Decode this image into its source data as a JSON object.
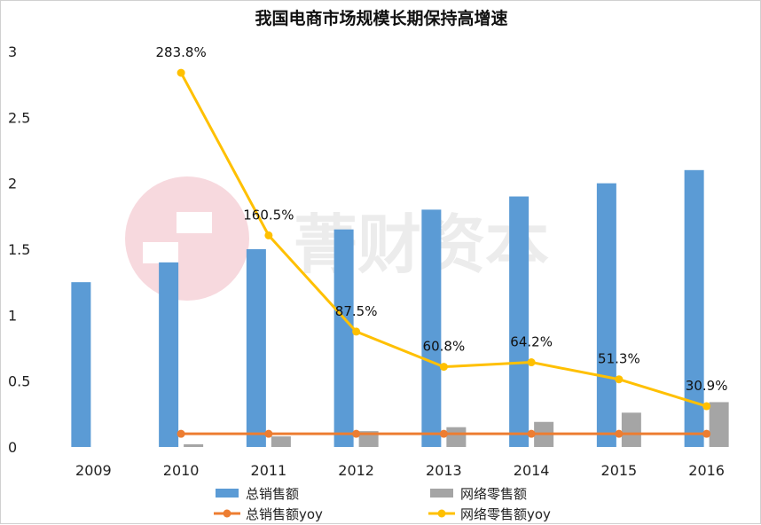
{
  "chart_data": {
    "type": "bar+line",
    "title": "我国电商市场规模长期保持高增速",
    "categories": [
      "2009",
      "2010",
      "2011",
      "2012",
      "2013",
      "2014",
      "2015",
      "2016"
    ],
    "ylim": [
      0,
      3
    ],
    "yticks": [
      "0",
      "0.5",
      "1",
      "1.5",
      "2",
      "2.5",
      "3"
    ],
    "series": [
      {
        "name": "总销售额",
        "kind": "bar",
        "color": "#5b9bd5",
        "values": [
          1.25,
          1.4,
          1.5,
          1.65,
          1.8,
          1.9,
          2.0,
          2.1
        ]
      },
      {
        "name": "网络零售额",
        "kind": "bar",
        "color": "#a5a5a5",
        "values": [
          null,
          0.02,
          0.08,
          0.12,
          0.15,
          0.19,
          0.26,
          0.34
        ]
      },
      {
        "name": "总销售额yoy",
        "kind": "line",
        "color": "#ed7d31",
        "values": [
          null,
          0.1,
          0.1,
          0.1,
          0.1,
          0.1,
          0.1,
          0.1
        ]
      },
      {
        "name": "网络零售额yoy",
        "kind": "line",
        "color": "#ffc000",
        "values": [
          null,
          2.838,
          1.605,
          0.875,
          0.608,
          0.642,
          0.513,
          0.309
        ],
        "labels": [
          null,
          "283.8%",
          "160.5%",
          "87.5%",
          "60.8%",
          "64.2%",
          "51.3%",
          "30.9%"
        ]
      }
    ],
    "grid": false,
    "legend": "bottom"
  },
  "watermark": {
    "text": "菁财资本"
  }
}
